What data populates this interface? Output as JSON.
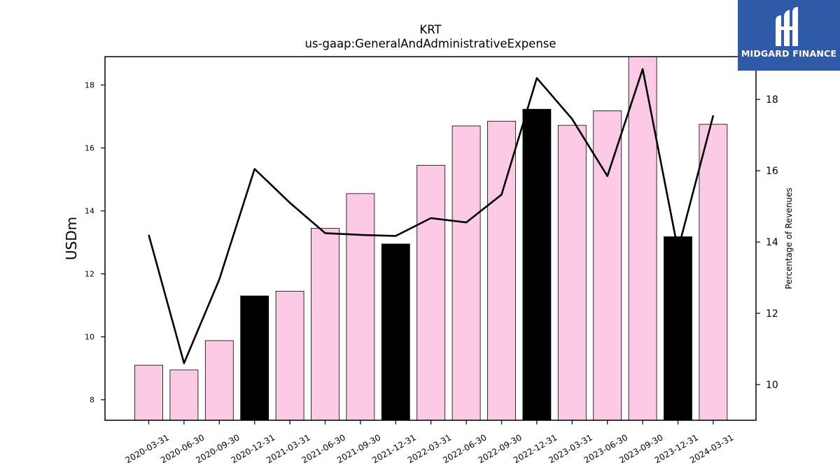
{
  "chart_data": {
    "type": "bar",
    "title": "KRT",
    "subtitle": "us-gaap:GeneralAndAdministrativeExpense",
    "ylabel": "USDm",
    "y2label": "Percentage of Revenues",
    "ylim": [
      7.35,
      18.9
    ],
    "y2lim": [
      9.0,
      19.2
    ],
    "yticks": [
      8,
      10,
      12,
      14,
      16,
      18
    ],
    "y2ticks": [
      10,
      12,
      14,
      16,
      18
    ],
    "categories": [
      "2020-03-31",
      "2020-06-30",
      "2020-09-30",
      "2020-12-31",
      "2021-03-31",
      "2021-06-30",
      "2021-09-30",
      "2021-12-31",
      "2022-03-31",
      "2022-06-30",
      "2022-09-30",
      "2022-12-31",
      "2023-03-31",
      "2023-06-30",
      "2023-09-30",
      "2023-12-31",
      "2024-03-31"
    ],
    "series": [
      {
        "kind": "bar",
        "axis": "left",
        "values": [
          9.1,
          8.95,
          9.88,
          11.3,
          11.45,
          13.45,
          14.55,
          12.95,
          15.45,
          16.7,
          16.85,
          17.23,
          16.72,
          17.18,
          18.9,
          13.18,
          16.75
        ],
        "highlight": [
          false,
          false,
          false,
          true,
          false,
          false,
          false,
          true,
          false,
          false,
          false,
          true,
          false,
          false,
          false,
          true,
          false
        ]
      },
      {
        "kind": "line",
        "axis": "right",
        "values": [
          14.2,
          10.6,
          12.95,
          16.05,
          15.1,
          14.25,
          14.2,
          14.17,
          14.67,
          14.55,
          15.33,
          18.6,
          17.45,
          15.85,
          18.85,
          13.78,
          17.55
        ]
      }
    ],
    "colors": {
      "bar": "#fccae4",
      "bar_highlight": "#000000",
      "line": "#000000",
      "edge": "#000000"
    },
    "grid": false,
    "legend": "none"
  },
  "brand": {
    "name": "MIDGARD FINANCE",
    "logo_icon": "midgard-m-logo-icon",
    "color": "#2f5aa8"
  }
}
